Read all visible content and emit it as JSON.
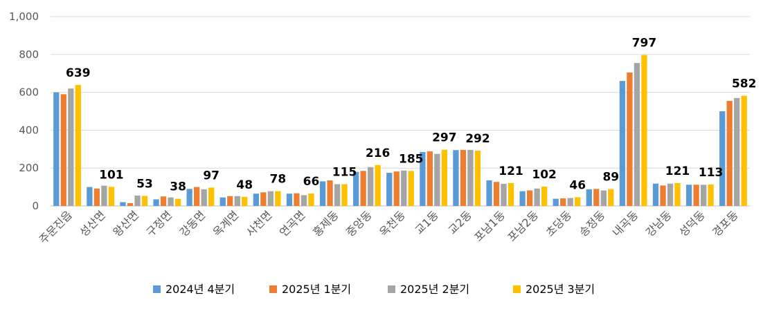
{
  "chart_data": {
    "type": "bar",
    "categories": [
      "주문진읍",
      "성산면",
      "왕산면",
      "구정면",
      "강동면",
      "옥계면",
      "사천면",
      "연곡면",
      "홍제동",
      "중앙동",
      "옥천동",
      "교1동",
      "교2동",
      "포남1동",
      "포남2동",
      "초당동",
      "송정동",
      "내곡동",
      "강남동",
      "성덕동",
      "경포동"
    ],
    "series": [
      {
        "name": "2024년 4분기",
        "color": "#5B9BD5",
        "values": [
          600,
          100,
          20,
          35,
          90,
          45,
          65,
          65,
          130,
          180,
          175,
          285,
          295,
          135,
          78,
          38,
          88,
          660,
          118,
          112,
          500
        ]
      },
      {
        "name": "2025년 1분기",
        "color": "#ED7D31",
        "values": [
          590,
          92,
          15,
          50,
          100,
          52,
          72,
          67,
          135,
          185,
          182,
          288,
          296,
          127,
          82,
          40,
          90,
          705,
          108,
          112,
          555
        ]
      },
      {
        "name": "2025년 2분기",
        "color": "#A5A5A5",
        "values": [
          620,
          107,
          55,
          45,
          88,
          52,
          78,
          57,
          115,
          205,
          187,
          275,
          296,
          117,
          92,
          42,
          82,
          755,
          118,
          112,
          570
        ]
      },
      {
        "name": "2025년 3분기",
        "color": "#FFC000",
        "values": [
          639,
          101,
          53,
          38,
          97,
          48,
          78,
          66,
          115,
          216,
          185,
          297,
          292,
          121,
          102,
          46,
          89,
          797,
          121,
          113,
          582
        ]
      }
    ],
    "data_labels": [
      "639",
      "101",
      "53",
      "38",
      "97",
      "48",
      "78",
      "66",
      "115",
      "216",
      "185",
      "297",
      "292",
      "121",
      "102",
      "46",
      "89",
      "797",
      "121",
      "113",
      "582"
    ],
    "y_ticks": [
      "0",
      "200",
      "400",
      "600",
      "800",
      "1,000"
    ],
    "ylim": [
      0,
      1000
    ],
    "grid": true,
    "legend_position": "bottom"
  }
}
